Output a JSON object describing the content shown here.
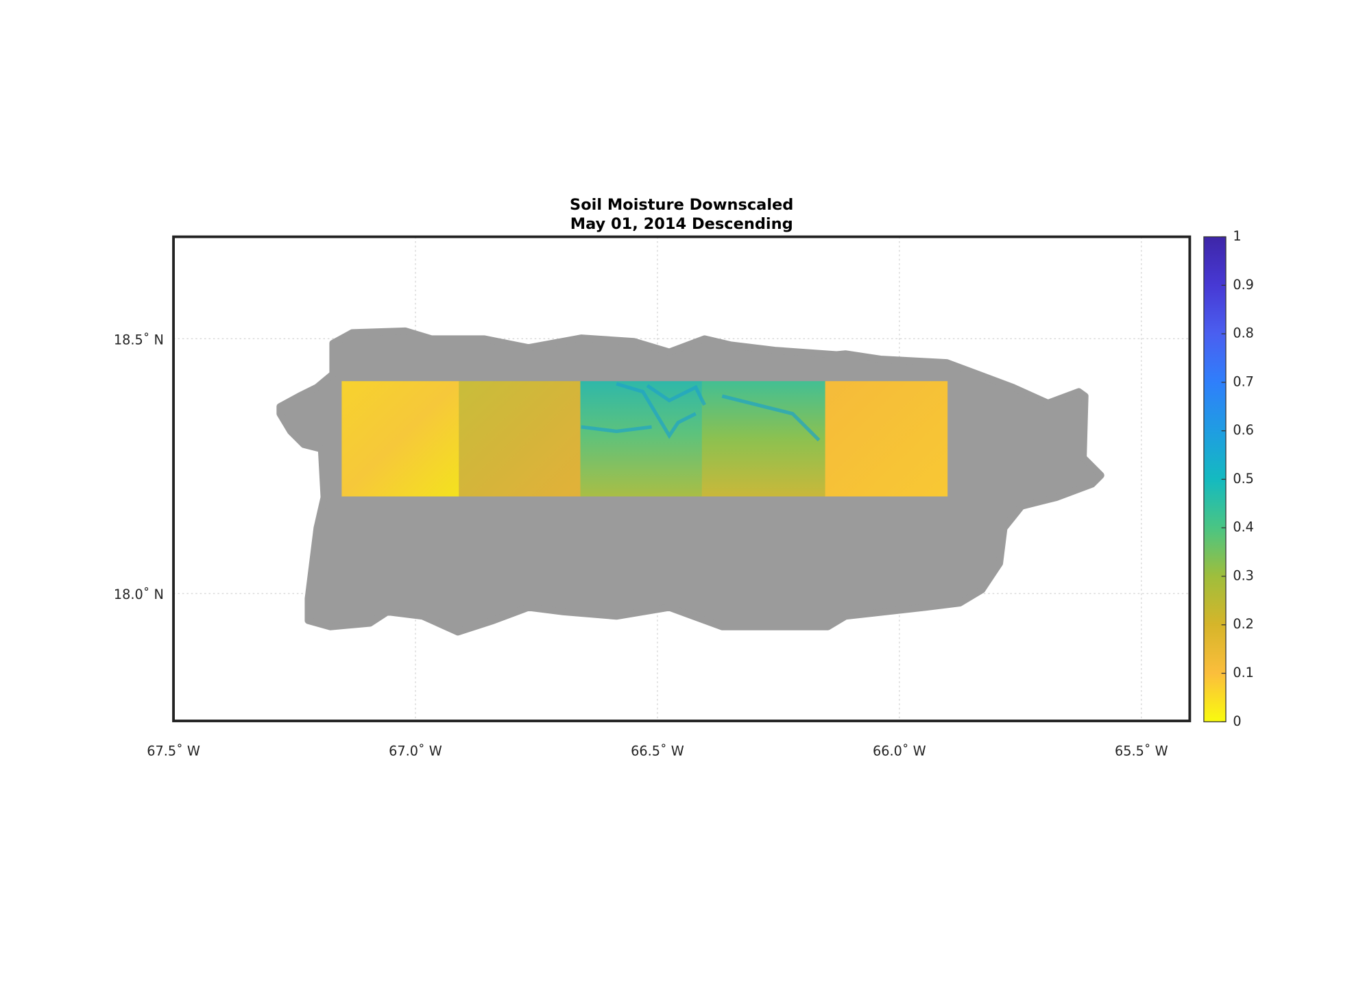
{
  "chart_data": {
    "type": "map",
    "title": "Soil Moisture Downscaled",
    "subtitle": "May 01, 2014 Descending",
    "xlim": [
      -67.5,
      -65.4
    ],
    "ylim": [
      17.75,
      18.7
    ],
    "xticks": [
      {
        "value": -67.5,
        "label": "67.5˚ W"
      },
      {
        "value": -67.0,
        "label": "67.0˚ W"
      },
      {
        "value": -66.5,
        "label": "66.5˚ W"
      },
      {
        "value": -66.0,
        "label": "66.0˚ W"
      },
      {
        "value": -65.5,
        "label": "65.5˚ W"
      }
    ],
    "yticks": [
      {
        "value": 18.0,
        "label": "18.0˚ N"
      },
      {
        "value": 18.5,
        "label": "18.5˚ N"
      }
    ],
    "grid": true,
    "colorbar": {
      "lim": [
        0,
        1
      ],
      "ticks": [
        0,
        0.1,
        0.2,
        0.3,
        0.4,
        0.5,
        0.6,
        0.7,
        0.8,
        0.9,
        1
      ],
      "colormap": [
        "#f9fb0e",
        "#fbbe3c",
        "#d6b52a",
        "#9fbe3c",
        "#4ac583",
        "#14bac0",
        "#1f9de2",
        "#2f7ffb",
        "#4a5ff0",
        "#4739d4",
        "#3e26a8"
      ]
    }
  }
}
